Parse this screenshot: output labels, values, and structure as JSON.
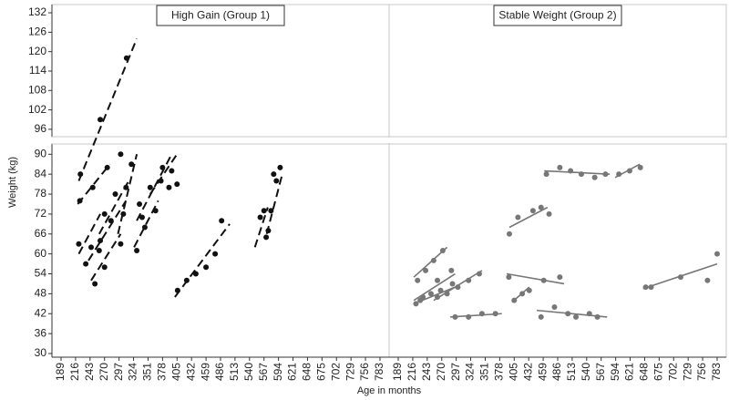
{
  "chart_data": {
    "type": "scatter",
    "y_label": "Weight (kg)",
    "x_label": "Age in months",
    "xlim": [
      172,
      800
    ],
    "xticks": [
      189,
      216,
      243,
      270,
      297,
      324,
      351,
      378,
      405,
      432,
      459,
      486,
      513,
      540,
      567,
      594,
      621,
      648,
      675,
      702,
      729,
      756,
      783
    ],
    "ylim": [
      30,
      92
    ],
    "yticks": [
      30,
      36,
      42,
      48,
      54,
      60,
      66,
      72,
      78,
      84,
      90
    ],
    "upper_ylim": [
      94,
      133
    ],
    "upper_yticks": [
      96,
      102,
      108,
      114,
      120,
      126,
      132
    ],
    "panels": [
      {
        "title": "High Gain (Group 1)",
        "color": "#111111",
        "line_style": "dashed",
        "subjects": [
          {
            "x": [
              225,
              262,
              311
            ],
            "values": [
              84,
              99,
              118
            ],
            "fit_x": [
              222,
              330
            ],
            "fit_y": [
              82,
              124
            ]
          },
          {
            "x": [
              224,
              248,
              275
            ],
            "values": [
              76,
              80,
              86
            ],
            "fit_x": [
              220,
              280
            ],
            "fit_y": [
              75,
              87
            ]
          },
          {
            "x": [
              222,
              235,
              260
            ],
            "values": [
              63,
              57,
              61
            ],
            "fit_x": [
              222,
              262
            ],
            "fit_y": [
              60,
              72
            ]
          },
          {
            "x": [
              245,
              262,
              282,
              305
            ],
            "values": [
              62,
              64,
              70,
              72
            ],
            "fit_x": [
              240,
              310
            ],
            "fit_y": [
              58,
              76
            ]
          },
          {
            "x": [
              252,
              270,
              300
            ],
            "values": [
              51,
              56,
              63
            ],
            "fit_x": [
              245,
              300
            ],
            "fit_y": [
              52,
              66
            ]
          },
          {
            "x": [
              270,
              290,
              310
            ],
            "values": [
              72,
              78,
              80
            ],
            "fit_x": [
              260,
              315
            ],
            "fit_y": [
              66,
              82
            ]
          },
          {
            "x": [
              300,
              320,
              340
            ],
            "values": [
              90,
              87,
              71
            ],
            "fit_x": [
              295,
              330
            ],
            "fit_y": [
              66,
              90
            ]
          },
          {
            "x": [
              335,
              355,
              375,
              390
            ],
            "values": [
              75,
              80,
              82,
              80
            ],
            "fit_x": [
              330,
              395
            ],
            "fit_y": [
              70,
              90
            ]
          },
          {
            "x": [
              330,
              345,
              365
            ],
            "values": [
              61,
              68,
              73
            ],
            "fit_x": [
              325,
              370
            ],
            "fit_y": [
              62,
              76
            ]
          },
          {
            "x": [
              378,
              395,
              405
            ],
            "values": [
              86,
              85,
              81
            ],
            "fit_x": [
              355,
              405
            ],
            "fit_y": [
              78,
              90
            ]
          },
          {
            "x": [
              406,
              423,
              440,
              459,
              476,
              488
            ],
            "values": [
              49,
              52,
              54,
              56,
              60,
              70
            ],
            "fit_x": [
              401,
              503
            ],
            "fit_y": [
              47,
              69
            ]
          },
          {
            "x": [
              567,
              571,
              560
            ],
            "values": [
              73,
              65,
              71
            ],
            "fit_x": [
              550,
              574
            ],
            "fit_y": [
              62,
              74
            ]
          },
          {
            "x": [
              575,
              580,
              585,
              590,
              597
            ],
            "values": [
              67,
              73,
              84,
              82,
              86
            ],
            "fit_x": [
              572,
              601
            ],
            "fit_y": [
              66,
              84
            ]
          }
        ]
      },
      {
        "title": "Stable Weight (Group 2)",
        "color": "#777777",
        "line_style": "solid",
        "subjects": [
          {
            "x": [
              225,
              240,
              255,
              272
            ],
            "values": [
              52,
              55,
              58,
              61
            ],
            "fit_x": [
              218,
              280
            ],
            "fit_y": [
              53,
              62
            ]
          },
          {
            "x": [
              222,
              235,
              262,
              288
            ],
            "values": [
              45,
              47,
              52,
              55
            ],
            "fit_x": [
              218,
              295
            ],
            "fit_y": [
              46,
              54
            ]
          },
          {
            "x": [
              230,
              250,
              268,
              290
            ],
            "values": [
              46,
              48,
              49,
              51
            ],
            "fit_x": [
              218,
              295
            ],
            "fit_y": [
              45,
              50
            ]
          },
          {
            "x": [
              262,
              280,
              300,
              320,
              340
            ],
            "values": [
              47,
              48,
              50,
              52,
              54
            ],
            "fit_x": [
              255,
              345
            ],
            "fit_y": [
              46,
              55
            ]
          },
          {
            "x": [
              295,
              320,
              345,
              370
            ],
            "values": [
              41,
              41,
              42,
              42
            ],
            "fit_x": [
              286,
              382
            ],
            "fit_y": [
              41,
              42
            ]
          },
          {
            "x": [
              395,
              460,
              490
            ],
            "values": [
              53,
              52,
              53
            ],
            "fit_x": [
              391,
              498
            ],
            "fit_y": [
              54,
              51
            ]
          },
          {
            "x": [
              396,
              412,
              440,
              455,
              470
            ],
            "values": [
              66,
              71,
              73,
              74,
              72
            ],
            "fit_x": [
              396,
              467
            ],
            "fit_y": [
              68,
              74
            ]
          },
          {
            "x": [
              405,
              420,
              433
            ],
            "values": [
              46,
              48,
              49
            ],
            "fit_x": [
              401,
              433
            ],
            "fit_y": [
              45.5,
              50
            ]
          },
          {
            "x": [
              455,
              480,
              505,
              520,
              545,
              560
            ],
            "values": [
              41,
              44,
              42,
              41,
              42,
              41
            ],
            "fit_x": [
              447,
              578
            ],
            "fit_y": [
              43,
              41
            ]
          },
          {
            "x": [
              465,
              490,
              510,
              530,
              555,
              575
            ],
            "values": [
              84,
              86,
              85,
              84,
              83,
              84
            ],
            "fit_x": [
              461,
              583
            ],
            "fit_y": [
              85,
              84
            ]
          },
          {
            "x": [
              600,
              620,
              640
            ],
            "values": [
              84,
              85,
              86
            ],
            "fit_x": [
              593,
              639
            ],
            "fit_y": [
              83,
              87
            ]
          },
          {
            "x": [
              650,
              660,
              715,
              765,
              783
            ],
            "values": [
              50,
              50,
              53,
              52,
              60
            ],
            "fit_x": [
              645,
              783
            ],
            "fit_y": [
              49.5,
              57
            ]
          }
        ]
      }
    ]
  }
}
